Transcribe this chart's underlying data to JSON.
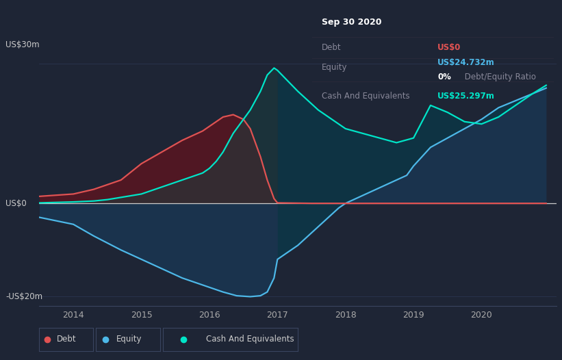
{
  "bg_color": "#1e2535",
  "plot_bg_color": "#1e2535",
  "ylabel_top": "US$30m",
  "ylabel_bottom": "-US$20m",
  "ylabel_zero": "US$0",
  "x_ticks": [
    2014,
    2015,
    2016,
    2017,
    2018,
    2019,
    2020
  ],
  "ylim": [
    -22,
    32
  ],
  "info_box": {
    "title": "Sep 30 2020",
    "debt_label": "Debt",
    "debt_value": "US$0",
    "equity_label": "Equity",
    "equity_value": "US$24.732m",
    "ratio_label": "0%",
    "ratio_text": " Debt/Equity Ratio",
    "cash_label": "Cash And Equivalents",
    "cash_value": "US$25.297m"
  },
  "debt_color": "#e05252",
  "equity_color": "#4db8e8",
  "cash_color": "#00e5c8",
  "debt_x": [
    2013.5,
    2014.0,
    2014.3,
    2014.7,
    2015.0,
    2015.3,
    2015.6,
    2015.9,
    2016.0,
    2016.1,
    2016.2,
    2016.35,
    2016.5,
    2016.6,
    2016.75,
    2016.85,
    2016.95,
    2017.0,
    2017.5,
    2018.0,
    2018.5,
    2019.0,
    2019.5,
    2020.0,
    2020.5,
    2020.95
  ],
  "debt_y": [
    1.5,
    2.0,
    3.0,
    5.0,
    8.5,
    11.0,
    13.5,
    15.5,
    16.5,
    17.5,
    18.5,
    19.0,
    18.0,
    16.0,
    10.0,
    5.0,
    1.0,
    0.1,
    0.0,
    0.0,
    0.0,
    0.0,
    0.0,
    0.0,
    0.0,
    0.0
  ],
  "equity_x": [
    2013.5,
    2014.0,
    2014.3,
    2014.7,
    2015.0,
    2015.3,
    2015.6,
    2015.9,
    2016.0,
    2016.2,
    2016.4,
    2016.6,
    2016.75,
    2016.85,
    2016.95,
    2017.0,
    2017.3,
    2017.6,
    2017.9,
    2018.0,
    2018.3,
    2018.6,
    2018.9,
    2019.0,
    2019.25,
    2019.5,
    2019.75,
    2020.0,
    2020.25,
    2020.5,
    2020.75,
    2020.95
  ],
  "equity_y": [
    -3.0,
    -4.5,
    -7.0,
    -10.0,
    -12.0,
    -14.0,
    -16.0,
    -17.5,
    -18.0,
    -19.0,
    -19.8,
    -20.0,
    -19.8,
    -19.0,
    -16.0,
    -12.0,
    -9.0,
    -5.0,
    -1.0,
    0.0,
    2.0,
    4.0,
    6.0,
    8.0,
    12.0,
    14.0,
    16.0,
    18.0,
    20.5,
    22.0,
    23.5,
    24.7
  ],
  "cash_x": [
    2013.5,
    2014.0,
    2014.3,
    2014.5,
    2015.0,
    2015.3,
    2015.6,
    2015.9,
    2016.0,
    2016.1,
    2016.2,
    2016.35,
    2016.5,
    2016.6,
    2016.75,
    2016.85,
    2016.95,
    2017.0,
    2017.3,
    2017.6,
    2017.9,
    2018.0,
    2018.25,
    2018.5,
    2018.75,
    2019.0,
    2019.25,
    2019.5,
    2019.75,
    2020.0,
    2020.25,
    2020.5,
    2020.75,
    2020.95
  ],
  "cash_y": [
    0.1,
    0.3,
    0.5,
    0.8,
    2.0,
    3.5,
    5.0,
    6.5,
    7.5,
    9.0,
    11.0,
    15.0,
    18.0,
    20.0,
    24.0,
    27.5,
    29.0,
    28.5,
    24.0,
    20.0,
    17.0,
    16.0,
    15.0,
    14.0,
    13.0,
    14.0,
    21.0,
    19.5,
    17.5,
    17.0,
    18.5,
    21.0,
    23.5,
    25.3
  ]
}
